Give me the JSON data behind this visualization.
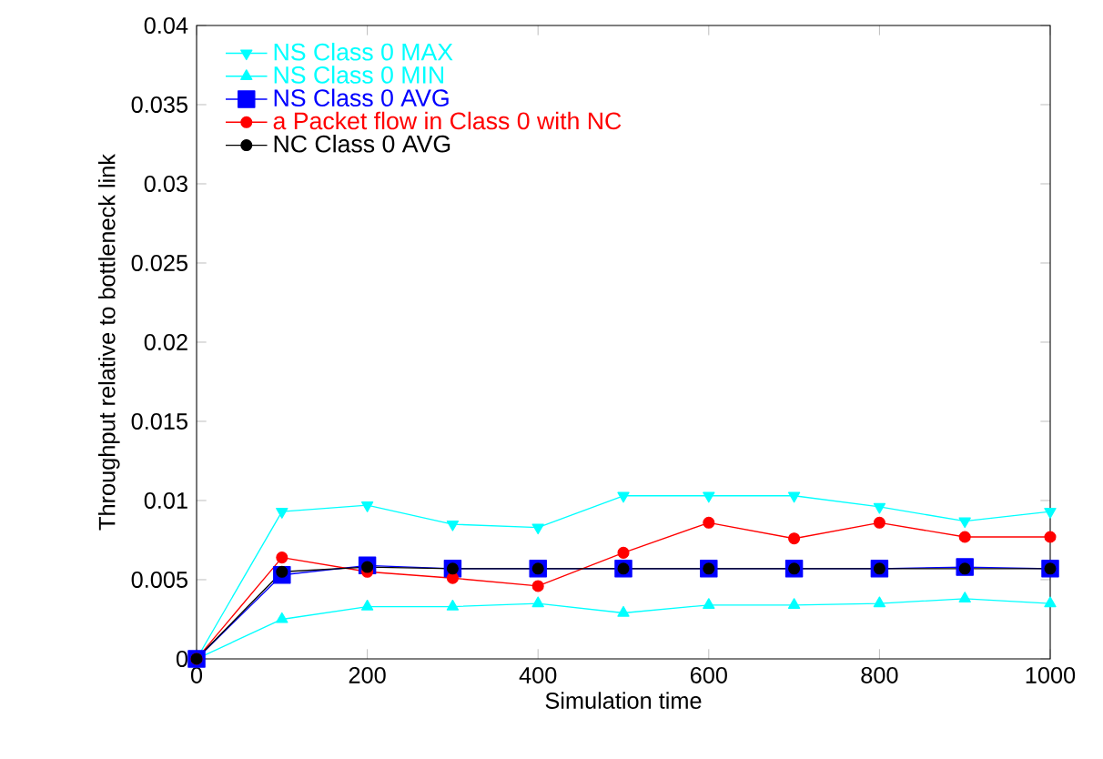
{
  "chart_data": {
    "type": "line",
    "xlabel": "Simulation time",
    "ylabel": "Throughput relative to bottleneck link",
    "x": [
      0,
      100,
      200,
      300,
      400,
      500,
      600,
      700,
      800,
      900,
      1000
    ],
    "series": [
      {
        "name": "NS Class 0 MAX",
        "color": "#00ffff",
        "marker": "triangle_down",
        "values": [
          0,
          0.0093,
          0.0097,
          0.0085,
          0.0083,
          0.0103,
          0.0103,
          0.0103,
          0.0096,
          0.0087,
          0.0093
        ]
      },
      {
        "name": "NS Class 0 MIN",
        "color": "#00ffff",
        "marker": "triangle",
        "values": [
          0,
          0.0025,
          0.0033,
          0.0033,
          0.0035,
          0.0029,
          0.0034,
          0.0034,
          0.0035,
          0.0038,
          0.0035
        ]
      },
      {
        "name": "NS Class 0 AVG",
        "color": "#0000ff",
        "marker": "square",
        "values": [
          0,
          0.0053,
          0.0059,
          0.0057,
          0.0057,
          0.0057,
          0.0057,
          0.0057,
          0.0057,
          0.0058,
          0.0057
        ]
      },
      {
        "name": "a Packet flow in Class 0 with NC",
        "color": "#ff0000",
        "marker": "circle",
        "values": [
          0,
          0.0064,
          0.0055,
          0.0051,
          0.0046,
          0.0067,
          0.0086,
          0.0076,
          0.0086,
          0.0077,
          0.0077
        ]
      },
      {
        "name": "NC Class 0 AVG",
        "color": "#000000",
        "marker": "circle",
        "values": [
          0,
          0.0055,
          0.0058,
          0.0057,
          0.0057,
          0.0057,
          0.0057,
          0.0057,
          0.0057,
          0.0057,
          0.0057
        ]
      }
    ],
    "xlim": [
      0,
      1000
    ],
    "ylim": [
      0,
      0.04
    ],
    "xticks": [
      0,
      200,
      400,
      600,
      800,
      1000
    ],
    "yticks": [
      0,
      0.005,
      0.01,
      0.015,
      0.02,
      0.025,
      0.03,
      0.035,
      0.04
    ],
    "legend": "top",
    "grid": false,
    "line_style": "solid"
  }
}
